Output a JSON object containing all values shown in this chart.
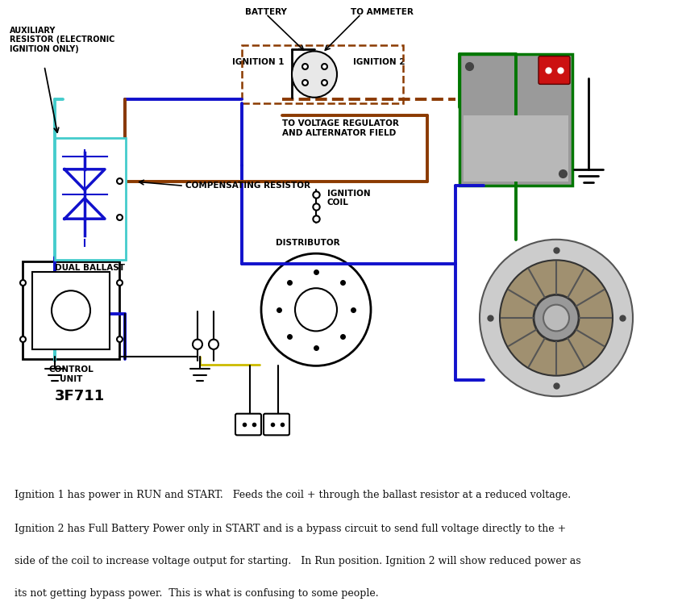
{
  "bg_color": "#ffffff",
  "fig_width": 8.46,
  "fig_height": 7.61,
  "line1_text": "Ignition 1 has power in RUN and START.   Feeds the coil + through the ballast resistor at a reduced voltage.",
  "line2_text": "Ignition 2 has Full Battery Power only in START and is a bypass circuit to send full voltage directly to the +",
  "line3_text": "side of the coil to increase voltage output for starting.   In Run position. Ignition 2 will show reduced power as",
  "line4_text": "its not getting bypass power.  This is what is confusing to some people.",
  "label_auxiliary": "AUXILIARY\nRESISTOR (ELECTRONIC\nIGNITION ONLY)",
  "label_dual_ballast": "DUAL BALLAST",
  "label_battery": "BATTERY",
  "label_to_ammeter": "TO AMMETER",
  "label_ignition1": "IGNITION 1",
  "label_ignition2": "IGNITION 2",
  "label_voltage_reg": "TO VOLTAGE REGULATOR\nAND ALTERNATOR FIELD",
  "label_comp_res": "COMPENSATING RESISTOR",
  "label_ign_coil": "IGNITION\nCOIL",
  "label_distributor": "DISTRIBUTOR",
  "label_control_unit": "CONTROL\nUNIT",
  "label_3f711": "3F711",
  "blue_color": "#1111cc",
  "green_color": "#007700",
  "brown_color": "#8B3A00",
  "teal_color": "#44cccc",
  "black_color": "#000000",
  "gray_color": "#aaaaaa",
  "darkgray_color": "#666666",
  "font_size_labels": 7.0,
  "font_size_body": 9.0
}
